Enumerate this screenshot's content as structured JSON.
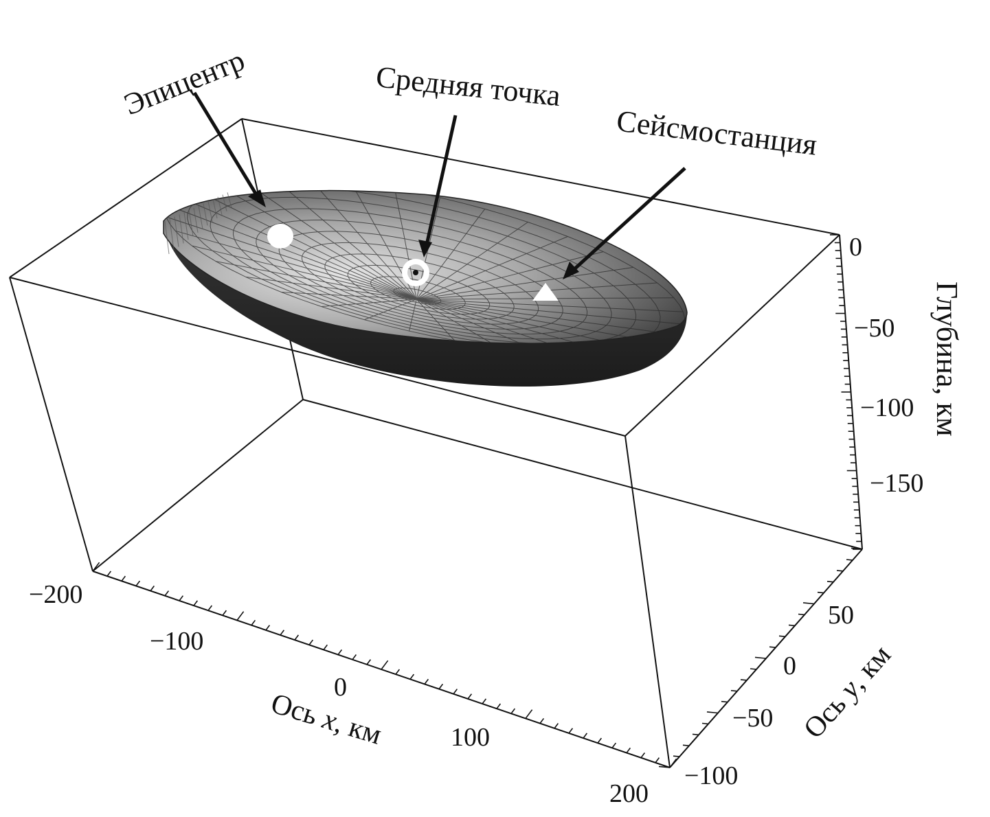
{
  "annotations": {
    "epicenter": "Эпицентр",
    "midpoint": "Средняя точка",
    "station": "Сейсмостанция"
  },
  "axes": {
    "depth": {
      "title": "Глубина, км",
      "ticks": [
        "0",
        "−50",
        "−100",
        "−150"
      ]
    },
    "x": {
      "title_prefix": "Ось ",
      "title_var": "x",
      "title_suffix": ", км",
      "ticks": [
        "−200",
        "−100",
        "0",
        "100",
        "200"
      ]
    },
    "y": {
      "title_prefix": "Ось ",
      "title_var": "y",
      "title_suffix": ", км",
      "ticks": [
        "50",
        "0",
        "−50",
        "−100"
      ]
    }
  },
  "colors": {
    "surface_light": "#e6e6e6",
    "surface_mid": "#8a8a8a",
    "surface_dark": "#2a2a2a",
    "markers": "#ffffff",
    "lines": "#111111"
  }
}
